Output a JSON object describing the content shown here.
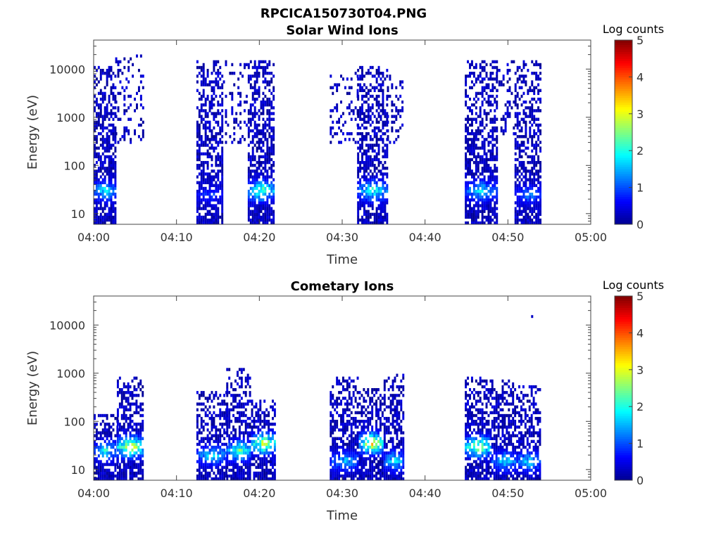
{
  "figure_title": "RPCICA150730T04.PNG",
  "colors": {
    "colormap": [
      "#00008f",
      "#0000ff",
      "#0080ff",
      "#00ffff",
      "#80ff80",
      "#ffff00",
      "#ff8000",
      "#ff0000",
      "#800000"
    ],
    "background": "#ffffff"
  },
  "chart_data": [
    {
      "type": "heatmap",
      "title": "Solar Wind Ions",
      "xlabel": "Time",
      "ylabel": "Energy (eV)",
      "yscale": "log",
      "ylim": [
        6,
        40000
      ],
      "xlim": [
        "04:00",
        "05:00"
      ],
      "x_ticks": [
        "04:00",
        "04:10",
        "04:20",
        "04:30",
        "04:40",
        "04:50",
        "05:00"
      ],
      "y_ticks": [
        "10",
        "100",
        "1000",
        "10000"
      ],
      "colorbar": {
        "label": "Log counts",
        "range": [
          0,
          5
        ],
        "ticks": [
          "0",
          "1",
          "2",
          "3",
          "4",
          "5"
        ]
      },
      "bursts": [
        {
          "start_min": 0.0,
          "end_min": 2.6,
          "max_energy": 12000,
          "peak_log": 2.4,
          "peak_energy": 30
        },
        {
          "start_min": 2.6,
          "end_min": 6.0,
          "max_energy": 20000,
          "min_energy": 300,
          "peak_log": 0.6,
          "sparse": true
        },
        {
          "start_min": 12.4,
          "end_min": 15.6,
          "max_energy": 15000,
          "peak_log": 1.2,
          "peak_energy": 25
        },
        {
          "start_min": 15.6,
          "end_min": 18.6,
          "max_energy": 15000,
          "min_energy": 300,
          "peak_log": 0.6,
          "sparse": true
        },
        {
          "start_min": 18.6,
          "end_min": 21.8,
          "max_energy": 15000,
          "peak_log": 3.0,
          "peak_energy": 30
        },
        {
          "start_min": 28.5,
          "end_min": 31.8,
          "max_energy": 9000,
          "min_energy": 300,
          "peak_log": 0.6,
          "sparse": true
        },
        {
          "start_min": 31.8,
          "end_min": 35.4,
          "max_energy": 12000,
          "peak_log": 2.6,
          "peak_energy": 30
        },
        {
          "start_min": 35.4,
          "end_min": 37.2,
          "max_energy": 9000,
          "min_energy": 300,
          "peak_log": 0.6,
          "sparse": true
        },
        {
          "start_min": 44.8,
          "end_min": 48.6,
          "max_energy": 15000,
          "peak_log": 2.2,
          "peak_energy": 30
        },
        {
          "start_min": 48.6,
          "end_min": 50.8,
          "max_energy": 15000,
          "min_energy": 400,
          "peak_log": 0.6,
          "sparse": true
        },
        {
          "start_min": 50.8,
          "end_min": 54.0,
          "max_energy": 15000,
          "peak_log": 1.6,
          "peak_energy": 25
        }
      ]
    },
    {
      "type": "heatmap",
      "title": "Cometary Ions",
      "xlabel": "Time",
      "ylabel": "Energy (eV)",
      "yscale": "log",
      "ylim": [
        6,
        40000
      ],
      "xlim": [
        "04:00",
        "05:00"
      ],
      "x_ticks": [
        "04:00",
        "04:10",
        "04:20",
        "04:30",
        "04:40",
        "04:50",
        "05:00"
      ],
      "y_ticks": [
        "10",
        "100",
        "1000",
        "10000"
      ],
      "colorbar": {
        "label": "Log counts",
        "range": [
          0,
          5
        ],
        "ticks": [
          "0",
          "1",
          "2",
          "3",
          "4",
          "5"
        ]
      },
      "bursts": [
        {
          "start_min": 0.0,
          "end_min": 2.8,
          "max_energy": 150,
          "peak_log": 2.4,
          "peak_energy": 25
        },
        {
          "start_min": 2.8,
          "end_min": 6.0,
          "max_energy": 900,
          "peak_log": 3.8,
          "peak_energy": 30
        },
        {
          "start_min": 12.4,
          "end_min": 16.0,
          "max_energy": 400,
          "peak_log": 2.2,
          "peak_energy": 20
        },
        {
          "start_min": 16.0,
          "end_min": 19.0,
          "max_energy": 1300,
          "peak_log": 2.8,
          "peak_energy": 25
        },
        {
          "start_min": 19.0,
          "end_min": 22.0,
          "max_energy": 300,
          "peak_log": 3.6,
          "peak_energy": 35
        },
        {
          "start_min": 28.5,
          "end_min": 32.0,
          "max_energy": 800,
          "peak_log": 2.0,
          "peak_energy": 15
        },
        {
          "start_min": 32.0,
          "end_min": 35.0,
          "max_energy": 500,
          "peak_log": 3.8,
          "peak_energy": 35
        },
        {
          "start_min": 35.0,
          "end_min": 37.4,
          "max_energy": 1000,
          "peak_log": 2.4,
          "peak_energy": 15
        },
        {
          "start_min": 44.8,
          "end_min": 48.0,
          "max_energy": 900,
          "peak_log": 3.4,
          "peak_energy": 30
        },
        {
          "start_min": 48.0,
          "end_min": 51.0,
          "max_energy": 900,
          "peak_log": 2.2,
          "peak_energy": 15
        },
        {
          "start_min": 51.0,
          "end_min": 54.0,
          "max_energy": 600,
          "peak_log": 2.2,
          "peak_energy": 15
        }
      ],
      "outliers": [
        {
          "time_min": 52.8,
          "energy": 15000,
          "log": 0.3
        }
      ]
    }
  ]
}
